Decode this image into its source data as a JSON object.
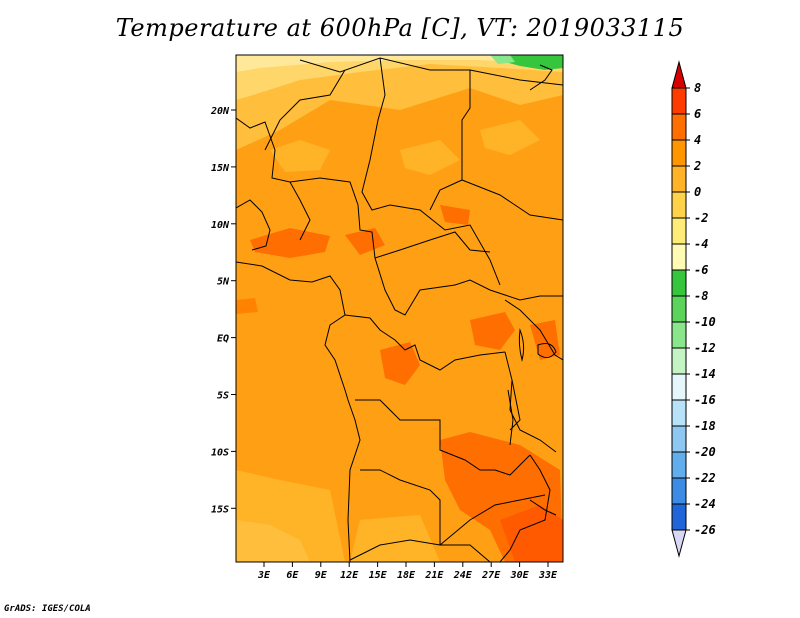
{
  "title": "Temperature at 600hPa [C], VT: 2019033115",
  "credit": "GrADS: IGES/COLA",
  "map": {
    "lat_labels": [
      "20N",
      "15N",
      "10N",
      "5N",
      "EQ",
      "5S",
      "10S",
      "15S"
    ],
    "lon_labels": [
      "3E",
      "6E",
      "9E",
      "12E",
      "15E",
      "18E",
      "21E",
      "24E",
      "27E",
      "30E",
      "33E"
    ]
  },
  "colorbar": {
    "labels": [
      "8",
      "6",
      "4",
      "2",
      "0",
      "-2",
      "-4",
      "-6",
      "-8",
      "-10",
      "-12",
      "-14",
      "-16",
      "-18",
      "-20",
      "-22",
      "-24",
      "-26"
    ],
    "colors": [
      "#d60000",
      "#ff3c00",
      "#ff6e00",
      "#ff9600",
      "#ffb428",
      "#ffd24a",
      "#ffeb78",
      "#fffab4",
      "#36c63e",
      "#5ad45a",
      "#8ae68a",
      "#c4f4c4",
      "#e6f7fb",
      "#b8e2f8",
      "#8ec8f2",
      "#62aeec",
      "#3c8ce6",
      "#2066d8",
      "#1848b8",
      "#102c90",
      "#0a0f6e",
      "#d8d8f5"
    ]
  }
}
